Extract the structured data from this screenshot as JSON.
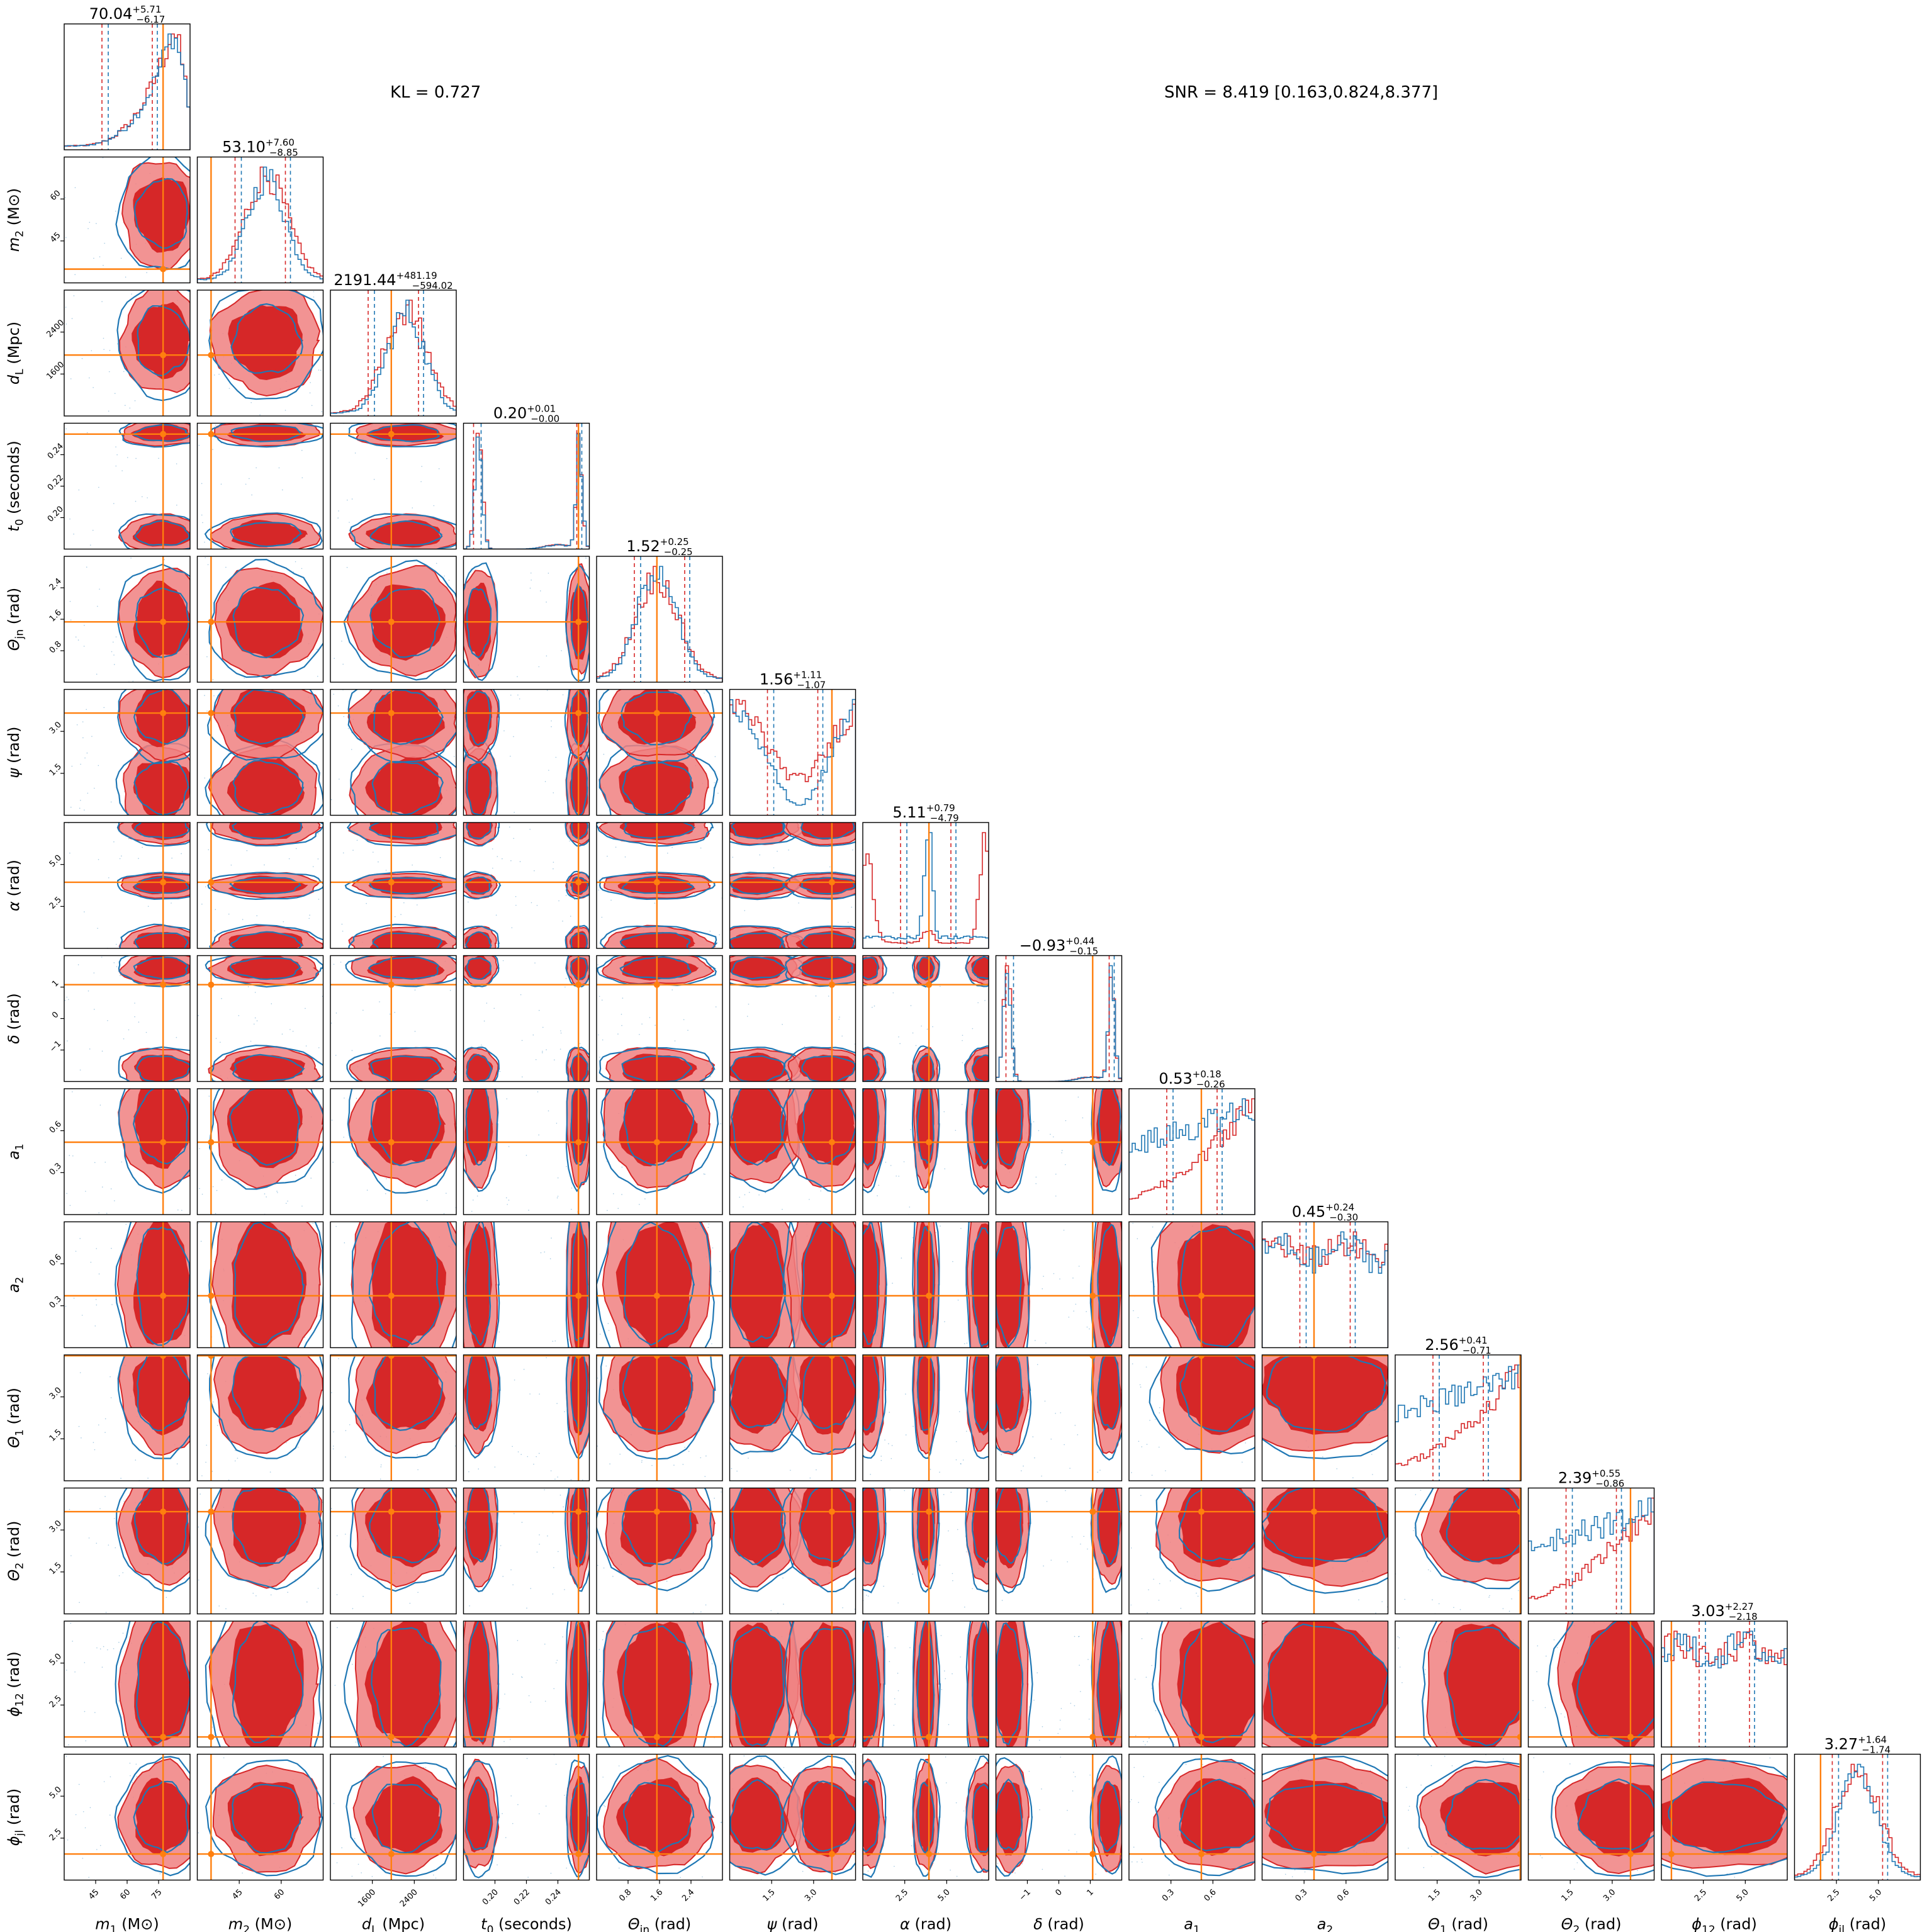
{
  "header": {
    "kl_text": "KL = 0.727",
    "snr_text": "SNR = 8.419 [0.163,0.824,8.377]"
  },
  "colors": {
    "series_a": "#d62728",
    "series_b": "#1f77b4",
    "truth": "#ff7f0e",
    "shade_1": "#d62728",
    "shade_2": "#f08080"
  },
  "chart_data": {
    "type": "corner",
    "grid": false,
    "series": [
      {
        "color": "#d62728"
      },
      {
        "color": "#1f77b4"
      }
    ],
    "parameters": [
      {
        "label": "m_1 (M⊙)",
        "title": "70.04",
        "up": "+5.71",
        "down": "−6.17",
        "range": [
          45,
          80
        ],
        "ticks": [
          "45",
          "60",
          "75"
        ],
        "truth": 72.5,
        "hist": "peak",
        "c": 0.75
      },
      {
        "label": "m_2 (M⊙)",
        "title": "53.10",
        "up": "+7.60",
        "down": "−8.85",
        "range": [
          37,
          69
        ],
        "ticks": [
          "45",
          "60"
        ],
        "truth": 40.5,
        "hist": "gauss",
        "c": 0.55
      },
      {
        "label": "d_L (Mpc)",
        "title": "2191.44",
        "up": "+481.19",
        "down": "−594.02",
        "range": [
          1300,
          2850
        ],
        "ticks": [
          "1600",
          "2400"
        ],
        "truth": 2050,
        "hist": "gauss",
        "c": 0.6
      },
      {
        "label": "t_0 (seconds)",
        "title": "0.20",
        "up": "+0.01",
        "down": "−0.00",
        "range": [
          0.194,
          0.246
        ],
        "ticks": [
          "0.20",
          "0.22",
          "0.24"
        ],
        "truth": 0.2415,
        "hist": "bimodal",
        "c": 0.2
      },
      {
        "label": "Θ_jn (rad)",
        "title": "1.52",
        "up": "+0.25",
        "down": "−0.25",
        "range": [
          0.4,
          2.8
        ],
        "ticks": [
          "0.8",
          "1.6",
          "2.4"
        ],
        "truth": 1.55,
        "hist": "gauss",
        "c": 0.48
      },
      {
        "label": "ψ (rad)",
        "title": "1.56",
        "up": "+1.11",
        "down": "−1.07",
        "range": [
          0,
          3.14
        ],
        "ticks": [
          "1.5",
          "3.0"
        ],
        "truth": 2.55,
        "hist": "wave",
        "c": 0.5
      },
      {
        "label": "α (rad)",
        "title": "5.11",
        "up": "+0.79",
        "down": "−4.79",
        "range": [
          0,
          6.28
        ],
        "ticks": [
          "2.5",
          "5.0"
        ],
        "truth": 3.3,
        "hist": "edges",
        "c": 0.5
      },
      {
        "label": "δ (rad)",
        "title": "−0.93",
        "up": "+0.44",
        "down": "−0.15",
        "range": [
          -1.45,
          1.45
        ],
        "ticks": [
          "−1",
          "0",
          "1"
        ],
        "truth": 0.78,
        "hist": "bimodal",
        "c": 0.15
      },
      {
        "label": "a_1",
        "title": "0.53",
        "up": "+0.18",
        "down": "−0.26",
        "range": [
          0,
          0.8
        ],
        "ticks": [
          "0.3",
          "0.6"
        ],
        "truth": 0.46,
        "hist": "rising",
        "c": 0.5
      },
      {
        "label": "a_2",
        "title": "0.45",
        "up": "+0.24",
        "down": "−0.30",
        "range": [
          0,
          0.8
        ],
        "ticks": [
          "0.3",
          "0.6"
        ],
        "truth": 0.33,
        "hist": "flat",
        "c": 0.5
      },
      {
        "label": "Θ_1 (rad)",
        "title": "2.56",
        "up": "+0.41",
        "down": "−0.71",
        "range": [
          0,
          3.14
        ],
        "ticks": [
          "1.5",
          "3.0"
        ],
        "truth": 3.12,
        "hist": "rising",
        "c": 0.5
      },
      {
        "label": "Θ_2 (rad)",
        "title": "2.39",
        "up": "+0.55",
        "down": "−0.86",
        "range": [
          0,
          3.14
        ],
        "ticks": [
          "1.5",
          "3.0"
        ],
        "truth": 2.55,
        "hist": "rising",
        "c": 0.5
      },
      {
        "label": "ϕ_12 (rad)",
        "title": "3.03",
        "up": "+2.27",
        "down": "−2.18",
        "range": [
          0,
          6.28
        ],
        "ticks": [
          "2.5",
          "5.0"
        ],
        "truth": 0.5,
        "hist": "flat",
        "c": 0.5
      },
      {
        "label": "ϕ_jl (rad)",
        "title": "3.27",
        "up": "+1.64",
        "down": "−1.74",
        "range": [
          0,
          6.28
        ],
        "ticks": [
          "2.5",
          "5.0"
        ],
        "truth": 1.3,
        "hist": "gauss",
        "c": 0.5
      }
    ]
  }
}
